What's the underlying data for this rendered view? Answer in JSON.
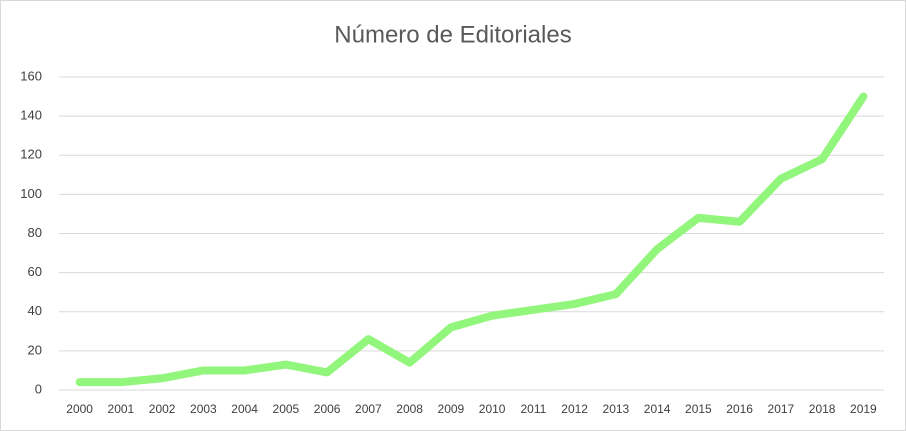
{
  "chart_data": {
    "type": "line",
    "title": "Número de Editoriales",
    "categories": [
      "2000",
      "2001",
      "2002",
      "2003",
      "2004",
      "2005",
      "2006",
      "2007",
      "2008",
      "2009",
      "2010",
      "2011",
      "2012",
      "2013",
      "2014",
      "2015",
      "2016",
      "2017",
      "2018",
      "2019"
    ],
    "series": [
      {
        "name": "Número de Editoriales",
        "color": "#92f57c",
        "values": [
          4,
          4,
          6,
          10,
          10,
          13,
          9,
          26,
          14,
          32,
          38,
          41,
          44,
          49,
          72,
          88,
          86,
          108,
          118,
          150
        ]
      }
    ],
    "ylim": [
      0,
      160
    ],
    "yticks": [
      0,
      20,
      40,
      60,
      80,
      100,
      120,
      140,
      160
    ],
    "grid": true,
    "legend": false
  }
}
